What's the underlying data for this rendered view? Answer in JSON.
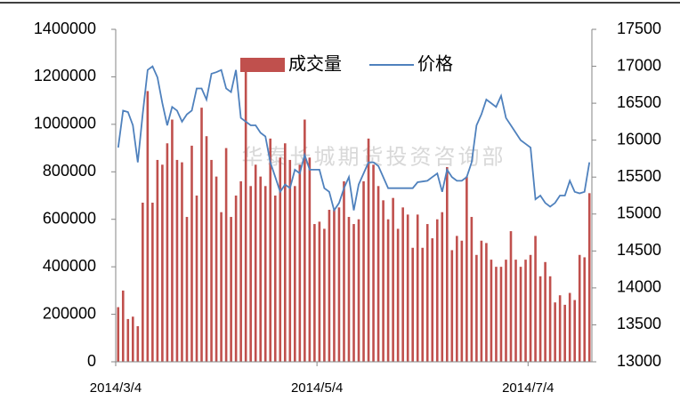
{
  "chart_data": {
    "type": "bar_line",
    "watermark": "华泰长城期货投资咨询部",
    "categories": [
      "2014/3/4",
      null,
      null,
      null,
      null,
      null,
      null,
      null,
      null,
      null,
      null,
      null,
      null,
      null,
      null,
      null,
      null,
      null,
      null,
      null,
      null,
      null,
      null,
      null,
      null,
      null,
      null,
      null,
      null,
      null,
      null,
      null,
      null,
      null,
      null,
      null,
      null,
      null,
      null,
      null,
      null,
      "2014/5/4",
      null,
      null,
      null,
      null,
      null,
      null,
      null,
      null,
      null,
      null,
      null,
      null,
      null,
      null,
      null,
      null,
      null,
      null,
      null,
      null,
      null,
      null,
      null,
      null,
      null,
      null,
      null,
      null,
      null,
      null,
      null,
      null,
      null,
      null,
      null,
      null,
      null,
      null,
      null,
      null,
      null,
      null,
      "2014/7/4",
      null,
      null,
      null,
      null,
      null,
      null,
      null,
      null,
      null,
      null,
      null,
      null
    ],
    "series": [
      {
        "name": "成交量",
        "color": "#c0504d",
        "axis": "y",
        "values": [
          230000,
          300000,
          180000,
          190000,
          150000,
          670000,
          1140000,
          670000,
          850000,
          830000,
          920000,
          1020000,
          850000,
          840000,
          610000,
          910000,
          700000,
          1070000,
          950000,
          850000,
          780000,
          630000,
          900000,
          610000,
          700000,
          760000,
          1250000,
          740000,
          830000,
          780000,
          740000,
          940000,
          700000,
          860000,
          920000,
          850000,
          740000,
          830000,
          1020000,
          860000,
          580000,
          590000,
          560000,
          640000,
          640000,
          650000,
          760000,
          610000,
          580000,
          600000,
          760000,
          940000,
          830000,
          740000,
          680000,
          600000,
          690000,
          560000,
          650000,
          620000,
          480000,
          620000,
          480000,
          580000,
          520000,
          600000,
          630000,
          820000,
          470000,
          530000,
          510000,
          780000,
          610000,
          450000,
          510000,
          500000,
          430000,
          400000,
          400000,
          430000,
          550000,
          430000,
          400000,
          430000,
          450000,
          530000,
          360000,
          420000,
          360000,
          250000,
          280000,
          240000,
          290000,
          260000,
          450000,
          440000,
          710000
        ]
      },
      {
        "name": "价格",
        "color": "#4f81bd",
        "axis": "y2",
        "values": [
          15900,
          16400,
          16380,
          16200,
          15700,
          16350,
          16950,
          17000,
          16850,
          16500,
          16200,
          16450,
          16400,
          16250,
          16350,
          16400,
          16700,
          16700,
          16550,
          16900,
          16920,
          16950,
          16700,
          16650,
          16950,
          16300,
          16250,
          16200,
          16200,
          16100,
          16050,
          15700,
          15500,
          15300,
          15400,
          15350,
          15600,
          15550,
          15800,
          15600,
          15600,
          15600,
          15350,
          15300,
          15050,
          15150,
          15350,
          15500,
          15050,
          15400,
          15550,
          15700,
          15700,
          15650,
          15500,
          15350,
          15350,
          15350,
          15350,
          15350,
          15350,
          15430,
          15440,
          15450,
          15500,
          15550,
          15300,
          15600,
          15500,
          15450,
          15450,
          15500,
          15700,
          16200,
          16350,
          16550,
          16500,
          16450,
          16600,
          16300,
          16200,
          16100,
          16000,
          15950,
          15900,
          15200,
          15250,
          15150,
          15100,
          15150,
          15250,
          15250,
          15450,
          15300,
          15280,
          15300,
          15700
        ]
      }
    ],
    "ylim": [
      0,
      1400000
    ],
    "yticks": [
      0,
      200000,
      400000,
      600000,
      800000,
      1000000,
      1200000,
      1400000
    ],
    "y2lim": [
      13000,
      17500
    ],
    "y2ticks": [
      13000,
      13500,
      14000,
      14500,
      15000,
      15500,
      16000,
      16500,
      17000,
      17500
    ],
    "legend": "top"
  }
}
